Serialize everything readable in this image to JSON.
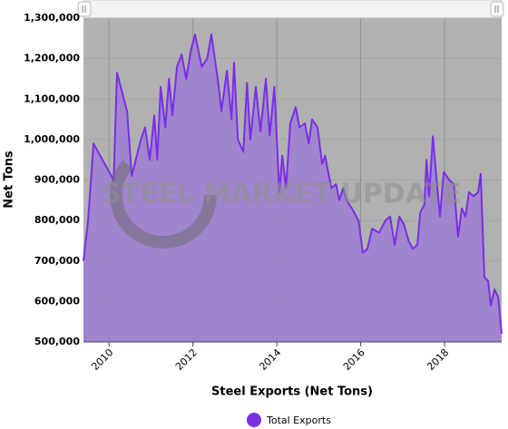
{
  "chart_data": {
    "type": "area",
    "watermark": "STEEL MARKET UPDATE",
    "x_label": "Steel Exports (Net Tons)",
    "y_label": "Net Tons",
    "x": [
      2009.39,
      2009.5,
      2009.63,
      2010.11,
      2010.19,
      2010.43,
      2010.54,
      2010.76,
      2010.86,
      2010.97,
      2011.08,
      2011.15,
      2011.23,
      2011.34,
      2011.43,
      2011.51,
      2011.62,
      2011.73,
      2011.84,
      2011.95,
      2012.05,
      2012.21,
      2012.34,
      2012.44,
      2012.59,
      2012.68,
      2012.81,
      2012.92,
      2012.98,
      2013.07,
      2013.2,
      2013.29,
      2013.37,
      2013.5,
      2013.61,
      2013.74,
      2013.83,
      2013.94,
      2014,
      2014.06,
      2014.13,
      2014.22,
      2014.32,
      2014.45,
      2014.54,
      2014.67,
      2014.76,
      2014.84,
      2014.97,
      2015.08,
      2015.15,
      2015.3,
      2015.41,
      2015.49,
      2015.58,
      2015.66,
      2015.79,
      2015.95,
      2016.05,
      2016.16,
      2016.27,
      2016.44,
      2016.59,
      2016.7,
      2016.81,
      2016.92,
      2017.03,
      2017.14,
      2017.24,
      2017.35,
      2017.42,
      2017.52,
      2017.57,
      2017.63,
      2017.72,
      2017.81,
      2017.89,
      2017.98,
      2018.11,
      2018.22,
      2018.32,
      2018.41,
      2018.5,
      2018.58,
      2018.69,
      2018.8,
      2018.86,
      2018.95,
      2019.04,
      2019.1,
      2019.19,
      2019.28,
      2019.36
    ],
    "series": [
      {
        "name": "Total Exports",
        "color": "#7a2ee6",
        "fill": "#9f82cf",
        "values": [
          700000,
          800000,
          990000,
          900000,
          1165000,
          1070000,
          910000,
          1000000,
          1030000,
          950000,
          1060000,
          950000,
          1130000,
          1030000,
          1150000,
          1060000,
          1180000,
          1210000,
          1150000,
          1220000,
          1260000,
          1180000,
          1200000,
          1260000,
          1150000,
          1070000,
          1170000,
          1050000,
          1190000,
          1000000,
          970000,
          1140000,
          1000000,
          1130000,
          1020000,
          1150000,
          1010000,
          1130000,
          1000000,
          870000,
          960000,
          880000,
          1040000,
          1080000,
          1030000,
          1040000,
          990000,
          1050000,
          1030000,
          940000,
          960000,
          880000,
          890000,
          850000,
          880000,
          850000,
          830000,
          800000,
          720000,
          730000,
          780000,
          770000,
          800000,
          810000,
          740000,
          810000,
          790000,
          750000,
          730000,
          740000,
          820000,
          840000,
          950000,
          860000,
          1008000,
          900000,
          810000,
          920000,
          900000,
          890000,
          760000,
          830000,
          810000,
          870000,
          860000,
          870000,
          915000,
          660000,
          650000,
          590000,
          630000,
          610000,
          520000
        ]
      }
    ],
    "xlim": [
      2009.39,
      2019.36
    ],
    "xticks": [
      2010,
      2012,
      2014,
      2016,
      2018
    ],
    "ylim": [
      500000,
      1300000
    ],
    "yticks": [
      {
        "value": 500000,
        "label": "500,000"
      },
      {
        "value": 600000,
        "label": "600,000"
      },
      {
        "value": 700000,
        "label": "700,000"
      },
      {
        "value": 800000,
        "label": "800,000"
      },
      {
        "value": 900000,
        "label": "900,000"
      },
      {
        "value": 1000000,
        "label": "1,000,000"
      },
      {
        "value": 1100000,
        "label": "1,100,000"
      },
      {
        "value": 1200000,
        "label": "1,200,000"
      },
      {
        "value": 1300000,
        "label": "1,300,000"
      }
    ],
    "grid": true,
    "legend": "bottom"
  }
}
